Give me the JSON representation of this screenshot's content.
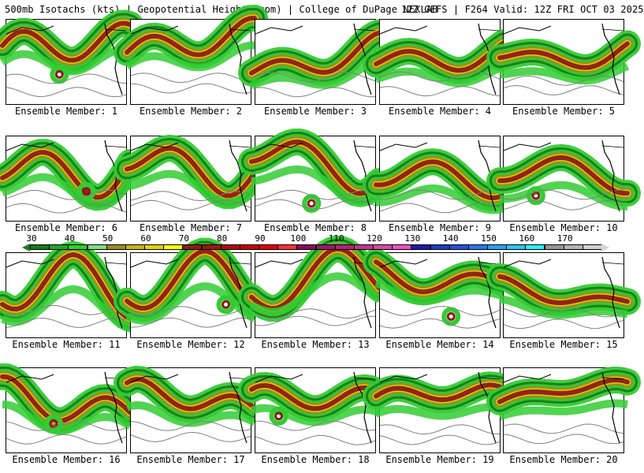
{
  "header": {
    "left_text": "500mb Isotachs (kts) | Geopotential Height (gpm) | College of DuPage NEXLAB",
    "right_text": "12Z GEFS | F264 Valid: 12Z FRI OCT 03 2025"
  },
  "map_panels": [
    {
      "caption": "Ensemble Member: 1"
    },
    {
      "caption": "Ensemble Member: 2"
    },
    {
      "caption": "Ensemble Member: 3"
    },
    {
      "caption": "Ensemble Member: 4"
    },
    {
      "caption": "Ensemble Member: 5"
    },
    {
      "caption": "Ensemble Member: 6"
    },
    {
      "caption": "Ensemble Member: 7"
    },
    {
      "caption": "Ensemble Member: 8"
    },
    {
      "caption": "Ensemble Member: 9"
    },
    {
      "caption": "Ensemble Member: 10"
    },
    {
      "caption": "Ensemble Member: 11"
    },
    {
      "caption": "Ensemble Member: 12"
    },
    {
      "caption": "Ensemble Member: 13"
    },
    {
      "caption": "Ensemble Member: 14"
    },
    {
      "caption": "Ensemble Member: 15"
    },
    {
      "caption": "Ensemble Member: 16"
    },
    {
      "caption": "Ensemble Member: 17"
    },
    {
      "caption": "Ensemble Member: 18"
    },
    {
      "caption": "Ensemble Member: 19"
    },
    {
      "caption": "Ensemble Member: 20"
    }
  ],
  "colorbar": {
    "labels": [
      "30",
      "40",
      "50",
      "60",
      "70",
      "80",
      "90",
      "100",
      "110",
      "120",
      "130",
      "140",
      "150",
      "160",
      "170"
    ],
    "colors": [
      "#1a7a1a",
      "#26a626",
      "#33cc33",
      "#7fe07f",
      "#a08c1e",
      "#c8b414",
      "#e6d200",
      "#ffff00",
      "#8c1a1a",
      "#a01414",
      "#b40a0a",
      "#cc0000",
      "#e60000",
      "#ff3030",
      "#8c0a5a",
      "#a0146e",
      "#b41e82",
      "#c83296",
      "#dc46aa",
      "#f050be",
      "#1a1ab4",
      "#1e3cc8",
      "#2850dc",
      "#2878f0",
      "#28a0ff",
      "#28c8ff",
      "#28f0ff",
      "#969696",
      "#b4b4b4",
      "#d2d2d2"
    ],
    "end_arrow_color": "#d2d2d2"
  },
  "legend_colors": {
    "dark_green": "#1a7a1a",
    "green": "#33cc33",
    "olive": "#a08c1e",
    "yellow": "#e6d200",
    "maroon": "#8c1a1a",
    "purple": "#8c0a5a",
    "height_contour": "#808080",
    "coastline": "#000000"
  }
}
